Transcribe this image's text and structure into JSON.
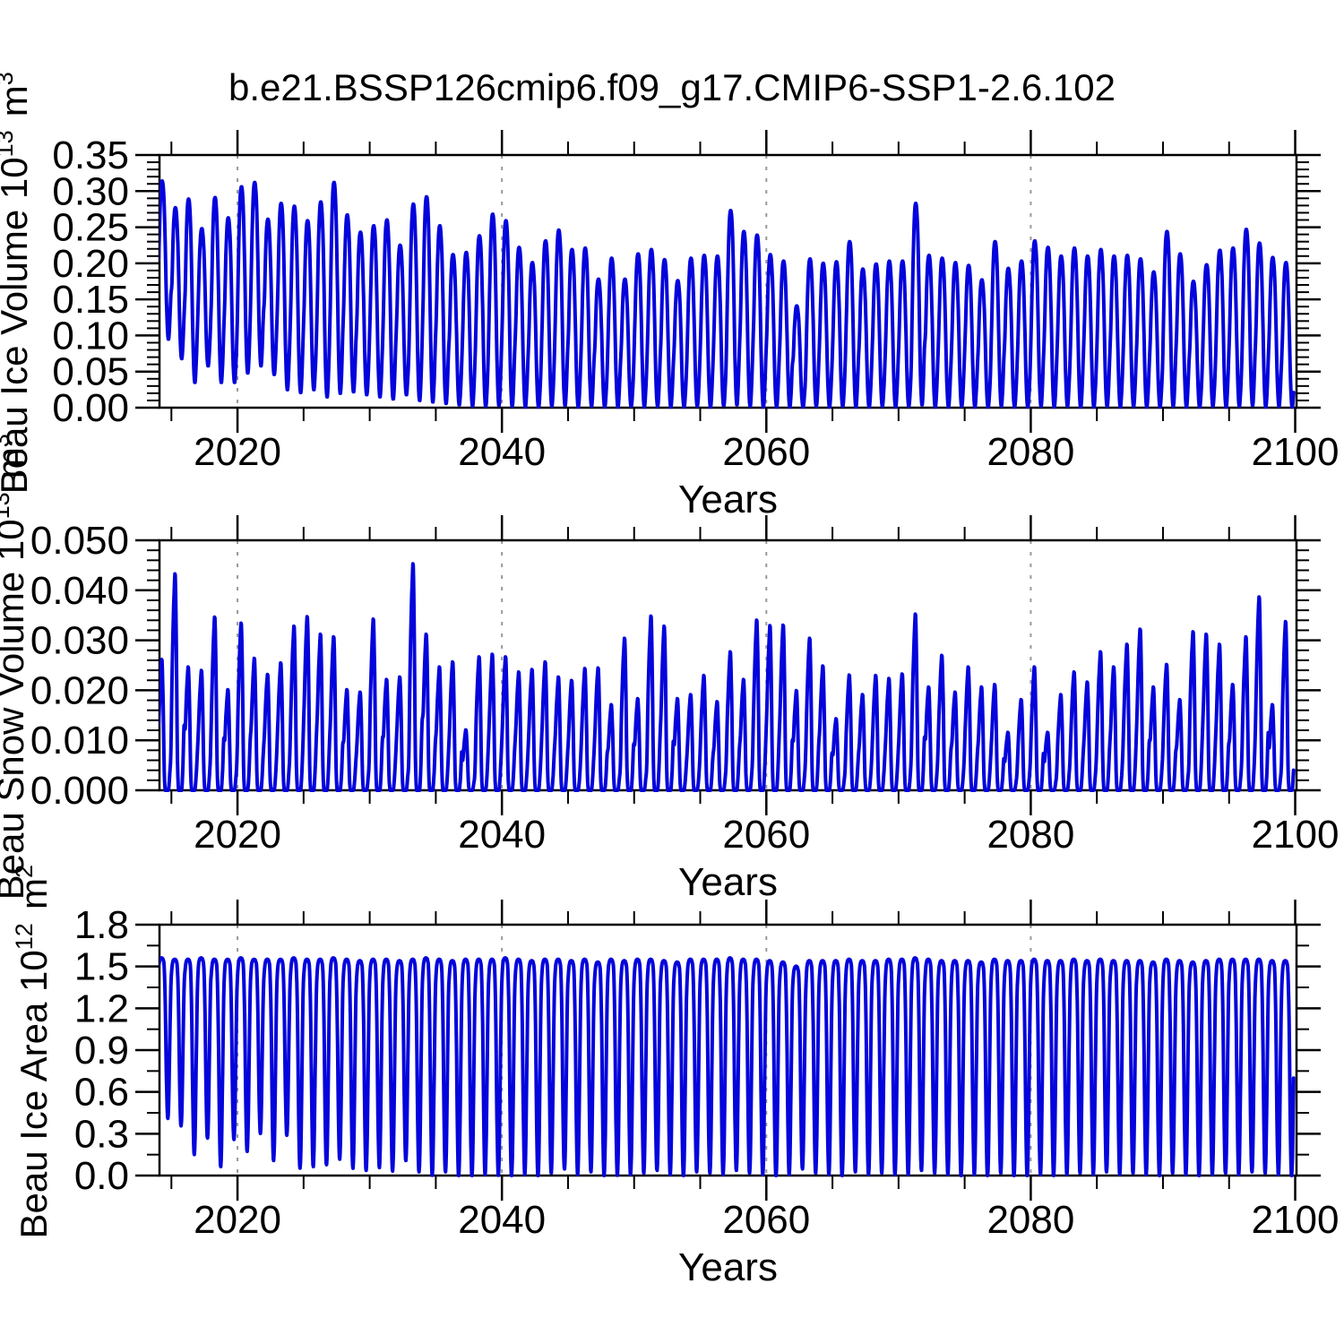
{
  "title": "b.e21.BSSP126cmip6.f09_g17.CMIP6-SSP1-2.6.102",
  "colors": {
    "line": "#0404dc",
    "axis": "#000000",
    "grid": "#999999",
    "background": "#ffffff"
  },
  "chart_data": [
    {
      "id": "ice-volume",
      "type": "line",
      "title": "",
      "ylabel": "Beau Ice Volume 10^13 m^3",
      "ylabel_rich": [
        {
          "t": "Beau Ice Volume 10"
        },
        {
          "t": "13",
          "sup": true
        },
        {
          "t": " m"
        },
        {
          "t": "3",
          "sup": true
        }
      ],
      "xlabel": "Years",
      "xlim": [
        2014.1,
        2100.1
      ],
      "ylim": [
        0,
        0.35
      ],
      "xticks": [
        {
          "v": 2020,
          "label": "2020"
        },
        {
          "v": 2040,
          "label": "2040"
        },
        {
          "v": 2060,
          "label": "2060"
        },
        {
          "v": 2080,
          "label": "2080"
        },
        {
          "v": 2100,
          "label": "2100"
        }
      ],
      "x_minor_step": 5,
      "yticks": [
        {
          "v": 0.0,
          "label": "0.00"
        },
        {
          "v": 0.05,
          "label": "0.05"
        },
        {
          "v": 0.1,
          "label": "0.10"
        },
        {
          "v": 0.15,
          "label": "0.15"
        },
        {
          "v": 0.2,
          "label": "0.20"
        },
        {
          "v": 0.25,
          "label": "0.25"
        },
        {
          "v": 0.3,
          "label": "0.30"
        },
        {
          "v": 0.35,
          "label": "0.35"
        }
      ],
      "y_minor_step": 0.01,
      "gridlines_x": [
        2020,
        2040,
        2060,
        2080
      ],
      "grid": true,
      "legend": null,
      "series": {
        "name": "Beau Ice Volume",
        "encoding": "annual seasonal cycle: monthly value = min + (max-min)*profile[month]",
        "start_year": 2014,
        "seasonal_profile": [
          0.5,
          0.78,
          0.95,
          1.0,
          0.97,
          0.84,
          0.58,
          0.25,
          0.05,
          0.0,
          0.1,
          0.28
        ],
        "annual_max": [
          0.314,
          0.277,
          0.289,
          0.248,
          0.291,
          0.263,
          0.306,
          0.312,
          0.261,
          0.283,
          0.279,
          0.259,
          0.285,
          0.312,
          0.267,
          0.243,
          0.252,
          0.26,
          0.225,
          0.282,
          0.292,
          0.252,
          0.212,
          0.215,
          0.238,
          0.268,
          0.259,
          0.222,
          0.201,
          0.231,
          0.246,
          0.219,
          0.221,
          0.178,
          0.207,
          0.178,
          0.213,
          0.219,
          0.205,
          0.176,
          0.207,
          0.211,
          0.21,
          0.273,
          0.244,
          0.239,
          0.212,
          0.203,
          0.141,
          0.206,
          0.2,
          0.202,
          0.23,
          0.192,
          0.199,
          0.203,
          0.203,
          0.283,
          0.211,
          0.207,
          0.201,
          0.197,
          0.177,
          0.23,
          0.193,
          0.203,
          0.231,
          0.222,
          0.21,
          0.221,
          0.21,
          0.219,
          0.21,
          0.211,
          0.206,
          0.188,
          0.244,
          0.213,
          0.175,
          0.198,
          0.218,
          0.221,
          0.247,
          0.228,
          0.208,
          0.201
        ],
        "annual_min": [
          0.095,
          0.068,
          0.035,
          0.058,
          0.035,
          0.035,
          0.048,
          0.058,
          0.046,
          0.025,
          0.021,
          0.025,
          0.015,
          0.02,
          0.022,
          0.018,
          0.015,
          0.012,
          0.018,
          0.01,
          0.008,
          0.006,
          0.004,
          0.002,
          0.002,
          0.003,
          0.002,
          0.001,
          0.001,
          0.002,
          0.003,
          0.001,
          0.002,
          0.001,
          0.001,
          0.002,
          0.001,
          0.002,
          0.001,
          0.001,
          0.002,
          0.001,
          0.003,
          0.004,
          0.002,
          0.001,
          0.001,
          0.001,
          0.001,
          0.002,
          0.001,
          0.002,
          0.001,
          0.001,
          0.002,
          0.001,
          0.002,
          0.004,
          0.001,
          0.001,
          0.002,
          0.001,
          0.001,
          0.002,
          0.001,
          0.001,
          0.002,
          0.001,
          0.002,
          0.001,
          0.001,
          0.002,
          0.001,
          0.002,
          0.001,
          0.001,
          0.002,
          0.001,
          0.001,
          0.002,
          0.001,
          0.002,
          0.003,
          0.001,
          0.002,
          0.001
        ]
      }
    },
    {
      "id": "snow-volume",
      "type": "line",
      "title": "",
      "ylabel": "Beau Snow Volume 10^13 m^3",
      "ylabel_rich": [
        {
          "t": "Beau Snow Volume 10"
        },
        {
          "t": "13",
          "sup": true
        },
        {
          "t": " m"
        },
        {
          "t": "3",
          "sup": true
        }
      ],
      "xlabel": "Years",
      "xlim": [
        2014.1,
        2100.1
      ],
      "ylim": [
        0,
        0.05
      ],
      "xticks": [
        {
          "v": 2020,
          "label": "2020"
        },
        {
          "v": 2040,
          "label": "2040"
        },
        {
          "v": 2060,
          "label": "2060"
        },
        {
          "v": 2080,
          "label": "2080"
        },
        {
          "v": 2100,
          "label": "2100"
        }
      ],
      "x_minor_step": 5,
      "yticks": [
        {
          "v": 0.0,
          "label": "0.000"
        },
        {
          "v": 0.01,
          "label": "0.010"
        },
        {
          "v": 0.02,
          "label": "0.020"
        },
        {
          "v": 0.03,
          "label": "0.030"
        },
        {
          "v": 0.04,
          "label": "0.040"
        },
        {
          "v": 0.05,
          "label": "0.050"
        }
      ],
      "y_minor_step": 0.002,
      "gridlines_x": [
        2020,
        2040,
        2060,
        2080
      ],
      "grid": true,
      "legend": null,
      "series": {
        "name": "Beau Snow Volume",
        "encoding": "annual seasonal cycle: monthly value = min + (max-min)*profile[month]",
        "start_year": 2014,
        "seasonal_profile": [
          0.5,
          0.74,
          0.92,
          1.0,
          0.68,
          0.15,
          0.0,
          0.0,
          0.0,
          0.01,
          0.12,
          0.3
        ],
        "annual_max": [
          0.026,
          0.043,
          0.0245,
          0.0238,
          0.0344,
          0.02,
          0.0332,
          0.0262,
          0.023,
          0.0253,
          0.0326,
          0.0345,
          0.031,
          0.0305,
          0.02,
          0.0195,
          0.034,
          0.022,
          0.0225,
          0.045,
          0.031,
          0.0245,
          0.0255,
          0.012,
          0.0265,
          0.027,
          0.0265,
          0.0235,
          0.024,
          0.0255,
          0.0225,
          0.0218,
          0.0242,
          0.0243,
          0.017,
          0.0302,
          0.0182,
          0.0346,
          0.0326,
          0.0182,
          0.019,
          0.0228,
          0.0176,
          0.0275,
          0.022,
          0.0338,
          0.0327,
          0.0328,
          0.0198,
          0.0302,
          0.0247,
          0.0142,
          0.0229,
          0.019,
          0.0228,
          0.0222,
          0.0231,
          0.035,
          0.0205,
          0.0268,
          0.0195,
          0.0245,
          0.0205,
          0.021,
          0.0115,
          0.018,
          0.0245,
          0.0115,
          0.019,
          0.0235,
          0.0215,
          0.0275,
          0.0245,
          0.029,
          0.032,
          0.0205,
          0.025,
          0.018,
          0.0315,
          0.031,
          0.029,
          0.021,
          0.0305,
          0.0384,
          0.017,
          0.0335
        ],
        "annual_min": [
          0,
          0,
          0,
          0,
          0,
          0,
          0,
          0,
          0,
          0,
          0,
          0,
          0,
          0,
          0,
          0,
          0,
          0,
          0,
          0,
          0,
          0,
          0,
          0,
          0,
          0,
          0,
          0,
          0,
          0,
          0,
          0,
          0,
          0,
          0,
          0,
          0,
          0,
          0,
          0,
          0,
          0,
          0,
          0,
          0,
          0,
          0,
          0,
          0,
          0,
          0,
          0,
          0,
          0,
          0,
          0,
          0,
          0,
          0,
          0,
          0,
          0,
          0,
          0,
          0,
          0,
          0,
          0,
          0,
          0,
          0,
          0,
          0,
          0,
          0,
          0,
          0,
          0,
          0,
          0,
          0,
          0,
          0,
          0,
          0,
          0
        ]
      }
    },
    {
      "id": "ice-area",
      "type": "line",
      "title": "",
      "ylabel": "Beau Ice Area 10^12 m^2",
      "ylabel_rich": [
        {
          "t": "Beau Ice Area 10"
        },
        {
          "t": "12",
          "sup": true
        },
        {
          "t": " m"
        },
        {
          "t": "2",
          "sup": true
        }
      ],
      "xlabel": "Years",
      "xlim": [
        2014.1,
        2100.1
      ],
      "ylim": [
        0,
        1.8
      ],
      "xticks": [
        {
          "v": 2020,
          "label": "2020"
        },
        {
          "v": 2040,
          "label": "2040"
        },
        {
          "v": 2060,
          "label": "2060"
        },
        {
          "v": 2080,
          "label": "2080"
        },
        {
          "v": 2100,
          "label": "2100"
        }
      ],
      "x_minor_step": 5,
      "yticks": [
        {
          "v": 0.0,
          "label": "0.0"
        },
        {
          "v": 0.3,
          "label": "0.3"
        },
        {
          "v": 0.6,
          "label": "0.6"
        },
        {
          "v": 0.9,
          "label": "0.9"
        },
        {
          "v": 1.2,
          "label": "1.2"
        },
        {
          "v": 1.5,
          "label": "1.5"
        },
        {
          "v": 1.8,
          "label": "1.8"
        }
      ],
      "y_minor_step": 0.15,
      "gridlines_x": [
        2020,
        2040,
        2060,
        2080
      ],
      "grid": true,
      "legend": null,
      "series": {
        "name": "Beau Ice Area",
        "encoding": "annual seasonal cycle: monthly value = min + (max-min)*profile[month]",
        "start_year": 2014,
        "seasonal_profile": [
          0.95,
          0.99,
          1.0,
          1.0,
          0.99,
          0.94,
          0.7,
          0.25,
          0.0,
          0.08,
          0.45,
          0.82
        ],
        "annual_max": [
          1.56,
          1.55,
          1.55,
          1.56,
          1.55,
          1.55,
          1.56,
          1.55,
          1.55,
          1.55,
          1.56,
          1.55,
          1.55,
          1.56,
          1.55,
          1.54,
          1.55,
          1.55,
          1.54,
          1.55,
          1.56,
          1.55,
          1.54,
          1.55,
          1.55,
          1.55,
          1.56,
          1.55,
          1.54,
          1.55,
          1.55,
          1.54,
          1.55,
          1.53,
          1.55,
          1.54,
          1.55,
          1.55,
          1.54,
          1.53,
          1.55,
          1.55,
          1.55,
          1.56,
          1.55,
          1.55,
          1.54,
          1.53,
          1.5,
          1.54,
          1.54,
          1.54,
          1.55,
          1.54,
          1.54,
          1.55,
          1.55,
          1.56,
          1.55,
          1.54,
          1.54,
          1.54,
          1.53,
          1.55,
          1.54,
          1.54,
          1.55,
          1.54,
          1.54,
          1.55,
          1.54,
          1.55,
          1.54,
          1.54,
          1.54,
          1.53,
          1.55,
          1.54,
          1.53,
          1.54,
          1.55,
          1.55,
          1.55,
          1.55,
          1.54,
          1.54
        ],
        "annual_min": [
          0.42,
          0.367,
          0.163,
          0.28,
          0.077,
          0.27,
          0.185,
          0.313,
          0.12,
          0.3,
          0.066,
          0.077,
          0.09,
          0.13,
          0.065,
          0.05,
          0.07,
          0.045,
          0.12,
          0.04,
          0.015,
          0.04,
          0.005,
          0.01,
          0.02,
          0.015,
          0.01,
          0.02,
          0.01,
          0.03,
          0.06,
          0.02,
          0.04,
          0.01,
          0.015,
          0.02,
          0.03,
          0.05,
          0.02,
          0.01,
          0.04,
          0.03,
          0.02,
          0.05,
          0.03,
          0.02,
          0.01,
          0.02,
          0.06,
          0.03,
          0.02,
          0.01,
          0.04,
          0.02,
          0.03,
          0.02,
          0.02,
          0.05,
          0.03,
          0.02,
          0.01,
          0.02,
          0.005,
          0.03,
          0.01,
          0.005,
          0.02,
          0.01,
          0.02,
          0.03,
          0.02,
          0.04,
          0.02,
          0.03,
          0.02,
          0.01,
          0.03,
          0.02,
          0.01,
          0.02,
          0.03,
          0.02,
          0.04,
          0.03,
          0.02,
          0.01
        ]
      }
    }
  ]
}
